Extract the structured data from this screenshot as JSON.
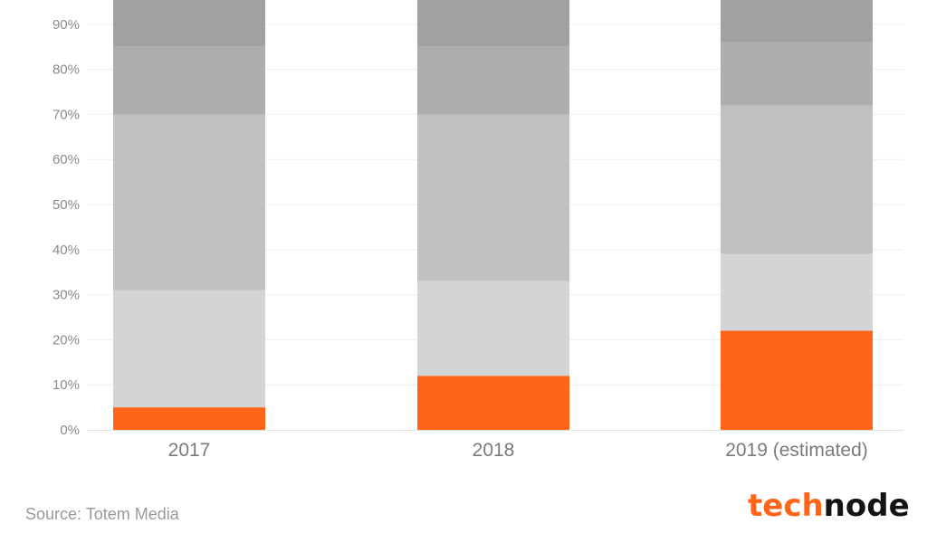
{
  "chart_data": {
    "type": "bar",
    "stacked": true,
    "categories": [
      "2017",
      "2018",
      "2019 (estimated)"
    ],
    "series": [
      {
        "values": [
          5,
          12,
          22
        ],
        "color": "#ff6418"
      },
      {
        "values": [
          26,
          21,
          17
        ],
        "color": "#d3d5d4"
      },
      {
        "values": [
          39,
          37,
          33
        ],
        "color": "#c0c1c3"
      },
      {
        "values": [
          15,
          15,
          14
        ],
        "color": "#adaeb0"
      },
      {
        "values": [
          15,
          15,
          14
        ],
        "color": "#a0a1a3"
      }
    ],
    "y_ticks": [
      "0%",
      "10%",
      "20%",
      "30%",
      "40%",
      "50%",
      "60%",
      "70%",
      "80%",
      "90%"
    ],
    "y_tick_values": [
      0,
      10,
      20,
      30,
      40,
      50,
      60,
      70,
      80,
      90
    ],
    "ylim": [
      0,
      100
    ],
    "grid": true,
    "legend": "none"
  },
  "footer": {
    "source": "Source: Totem Media"
  },
  "logo": {
    "part_a": "tech",
    "part_b": "node",
    "color_a": "#ff6418",
    "color_b": "#141414"
  }
}
